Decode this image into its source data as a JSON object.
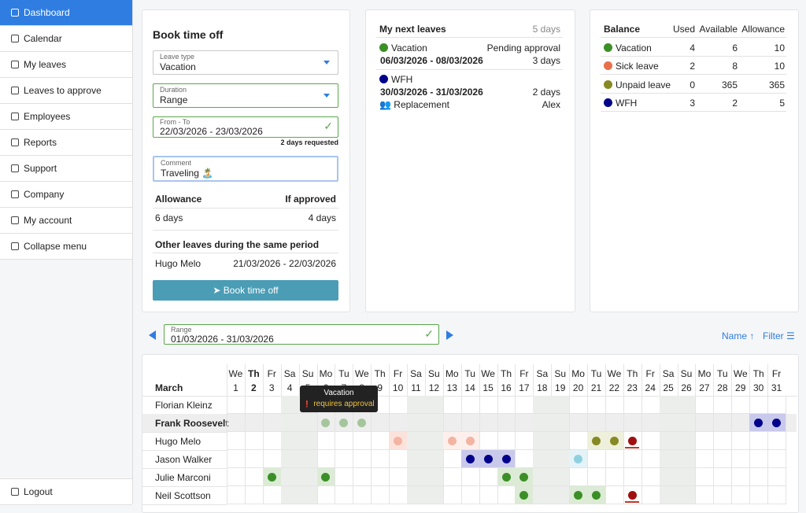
{
  "sidebar": {
    "items": [
      "Dashboard",
      "Calendar",
      "My leaves",
      "Leaves to approve",
      "Employees",
      "Reports",
      "Support",
      "Company",
      "My account",
      "Collapse menu"
    ],
    "logout": "Logout"
  },
  "booking": {
    "title": "Book time off",
    "leave_type": {
      "label": "Leave type",
      "value": "Vacation"
    },
    "duration": {
      "label": "Duration",
      "value": "Range"
    },
    "dates": {
      "label": "From - To",
      "value": "22/03/2026 - 23/03/2026",
      "note": "2 days requested"
    },
    "comment": {
      "label": "Comment",
      "value": "Traveling 🏝️"
    },
    "allowance": {
      "header": "Allowance",
      "value": "6 days"
    },
    "if_approved": {
      "header": "If approved",
      "value": "4 days"
    },
    "other_leaves": {
      "title": "Other leaves during the same period",
      "rows": [
        [
          "Hugo Melo",
          "21/03/2026 - 22/03/2026"
        ]
      ]
    },
    "button": "Book time off"
  },
  "next_leaves": {
    "title": "My next leaves",
    "count": "5 days",
    "items": [
      {
        "type": "Vacation",
        "color": "#3b8f27",
        "status": "Pending approval",
        "dates": "06/03/2026 - 08/03/2026",
        "duration": "3 days"
      },
      {
        "type": "WFH",
        "color": "#00008b",
        "dates": "30/03/2026 - 31/03/2026",
        "duration": "2 days",
        "replacement_label": "Replacement",
        "replacement": "Alex"
      }
    ]
  },
  "balance": {
    "headers": [
      "Balance",
      "Used",
      "Available",
      "Allowance"
    ],
    "rows": [
      {
        "type": "Vacation",
        "color": "#3b8f27",
        "values": [
          4,
          6,
          10
        ]
      },
      {
        "type": "Sick leave",
        "color": "#e8704a",
        "values": [
          2,
          8,
          10
        ]
      },
      {
        "type": "Unpaid leave",
        "color": "#878a23",
        "values": [
          0,
          365,
          365
        ]
      },
      {
        "type": "WFH",
        "color": "#00008b",
        "values": [
          3,
          2,
          5
        ]
      }
    ]
  },
  "range": {
    "label": "Range",
    "value": "01/03/2026 - 31/03/2026"
  },
  "sort": "Name",
  "filter": "Filter",
  "calendar": {
    "month": "March",
    "weekdays": [
      "We",
      "Th",
      "Fr",
      "Sa",
      "Su",
      "Mo",
      "Tu",
      "We",
      "Th",
      "Fr",
      "Sa",
      "Su",
      "Mo",
      "Tu",
      "We",
      "Th",
      "Fr",
      "Sa",
      "Su",
      "Mo",
      "Tu",
      "We",
      "Th",
      "Fr",
      "Sa",
      "Su",
      "Mo",
      "Tu",
      "We",
      "Th",
      "Fr"
    ],
    "days": [
      1,
      2,
      3,
      4,
      5,
      6,
      7,
      8,
      9,
      10,
      11,
      12,
      13,
      14,
      15,
      16,
      17,
      18,
      19,
      20,
      21,
      22,
      23,
      24,
      25,
      26,
      27,
      28,
      29,
      30,
      31
    ],
    "today": 2,
    "weekend_days": [
      4,
      5,
      11,
      12,
      18,
      19,
      25,
      26
    ],
    "weekend_color": "#eceeec",
    "people": [
      {
        "name": "Florian Kleinz",
        "marks": []
      },
      {
        "name": "Frank Roosevelt",
        "bold": true,
        "row_color": "#eeeeee",
        "marks": [
          {
            "days": [
              6,
              7,
              8
            ],
            "dot": "#a5c69c"
          },
          {
            "days": [
              30,
              31
            ],
            "dot": "#00008b",
            "bg": "#c9c9ec"
          }
        ]
      },
      {
        "name": "Hugo Melo",
        "marks": [
          {
            "days": [
              10
            ],
            "dot": "#f3b4a3",
            "bg": "#fbe3dc"
          },
          {
            "days": [
              13,
              14
            ],
            "dot": "#f3b4a3",
            "bg": "#fdf0ec"
          },
          {
            "days": [
              21,
              22
            ],
            "dot": "#878a23",
            "bg": "#eef0dc"
          },
          {
            "days": [
              23
            ],
            "dot": "#a01010",
            "underline": "#c0392b"
          }
        ]
      },
      {
        "name": "Jason Walker",
        "marks": [
          {
            "days": [
              14,
              15,
              16
            ],
            "dot": "#00008b",
            "bg": "#c9c9ec"
          },
          {
            "days": [
              20
            ],
            "dot": "#8fd0e0",
            "bg": "#e4f3f7"
          }
        ]
      },
      {
        "name": "Julie Marconi",
        "marks": [
          {
            "days": [
              3,
              6,
              16,
              17
            ],
            "dot": "#3b8f27",
            "bg": "#dcebd5"
          }
        ]
      },
      {
        "name": "Neil Scottson",
        "marks": [
          {
            "days": [
              17,
              20,
              21
            ],
            "dot": "#3b8f27",
            "bg": "#dcebd5"
          },
          {
            "days": [
              23
            ],
            "dot": "#a01010",
            "underline": "#c0392b"
          }
        ]
      }
    ],
    "tooltip": {
      "title": "Vacation",
      "text": "requires approval"
    }
  }
}
